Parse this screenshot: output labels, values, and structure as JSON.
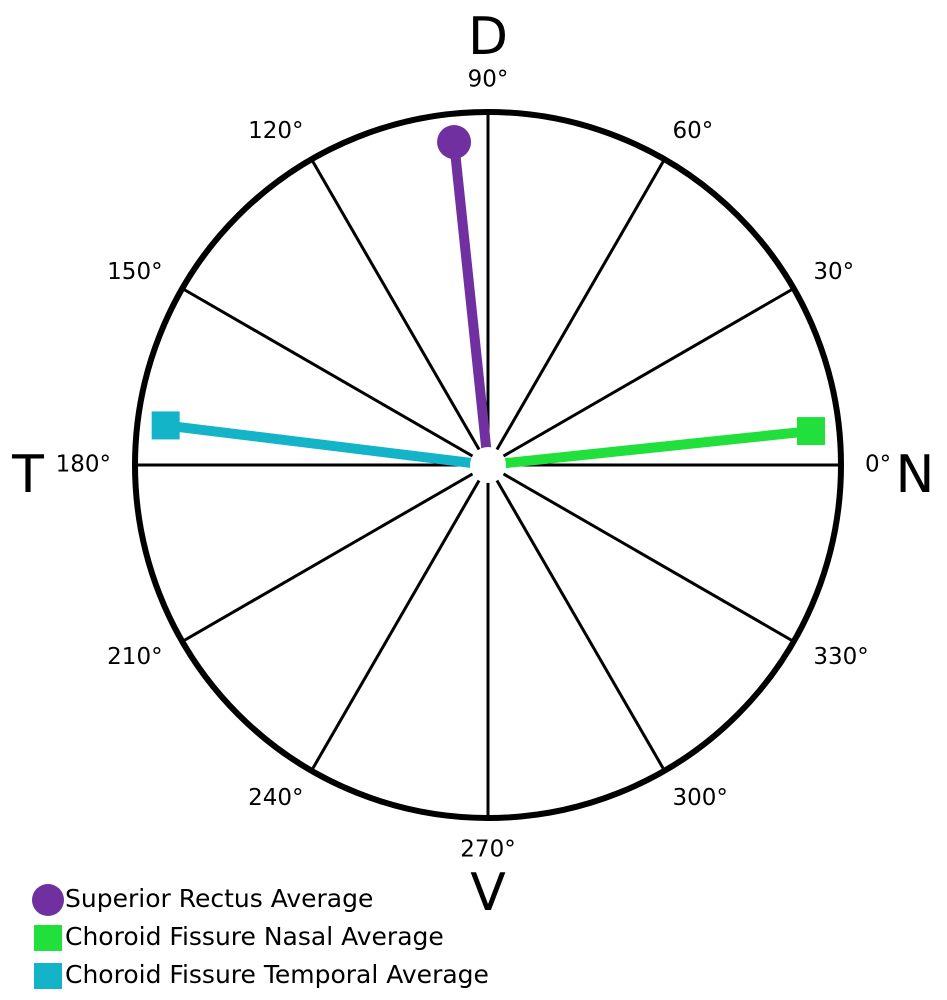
{
  "chart_data": {
    "type": "polar",
    "direction_labels": {
      "top": "D",
      "right": "N",
      "bottom": "V",
      "left": "T"
    },
    "angle_ticks": [
      {
        "value": 0,
        "label": "0°"
      },
      {
        "value": 30,
        "label": "30°"
      },
      {
        "value": 60,
        "label": "60°"
      },
      {
        "value": 90,
        "label": "90°"
      },
      {
        "value": 120,
        "label": "120°"
      },
      {
        "value": 150,
        "label": "150°"
      },
      {
        "value": 180,
        "label": "180°"
      },
      {
        "value": 210,
        "label": "210°"
      },
      {
        "value": 240,
        "label": "240°"
      },
      {
        "value": 270,
        "label": "270°"
      },
      {
        "value": 300,
        "label": "300°"
      },
      {
        "value": 330,
        "label": "330°"
      }
    ],
    "series": [
      {
        "name": "Superior Rectus Average",
        "color": "#7030a0",
        "marker": "circle",
        "values": [
          96
        ]
      },
      {
        "name": "Choroid Fissure Nasal Average",
        "color": "#22e03c",
        "marker": "square",
        "values": [
          6
        ]
      },
      {
        "name": "Choroid Fissure Temporal Average",
        "color": "#13b4c8",
        "marker": "square",
        "values": [
          173
        ]
      }
    ]
  }
}
